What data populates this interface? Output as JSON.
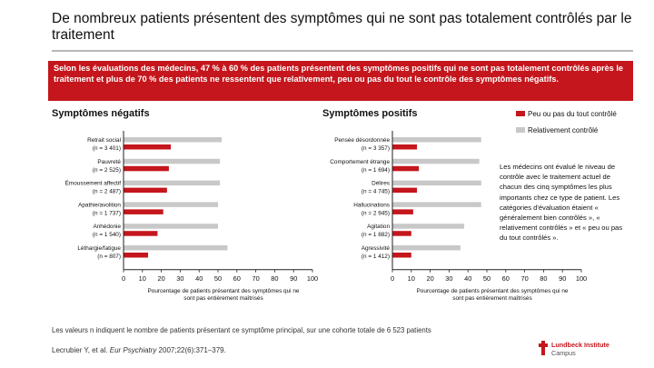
{
  "slide": {
    "title": "De nombreux patients présentent des symptômes qui ne sont pas totalement contrôlés par le traitement",
    "banner": "Selon les évaluations des médecins, 47 % à 60 % des patients présentent des symptômes positifs qui ne sont pas totalement contrôlés après le traitement et plus de 70 % des patients ne ressentent que relativement, peu ou pas du tout le contrôle des symptômes négatifs.",
    "note": "Les médecins ont évalué le niveau de contrôle avec le traitement actuel de chacun des cinq symptômes les plus importants chez ce type de patient. Les catégories d'évaluation étaient « généralement bien contrôlés », « relativement contrôlés » et « peu ou pas du tout contrôlés ».",
    "footnote": "Les valeurs n indiquent le nombre de patients présentant ce symptôme principal, sur une cohorte totale de 6 523 patients",
    "reference_prefix": "Lecrubier Y, et al. ",
    "reference_journal": "Eur Psychiatry",
    "reference_suffix": " 2007;22(6):371–379.",
    "logo_line1": "Lundbeck Institute",
    "logo_line2": "Campus"
  },
  "colors": {
    "accent": "#c4161c",
    "bar_light": "#c8c8c8",
    "bar_red": "#c4161c"
  },
  "legend": [
    {
      "label": "Peu ou pas du tout contrôlé",
      "color": "#c4161c"
    },
    {
      "label": "Relativement contrôlé",
      "color": "#c8c8c8"
    }
  ],
  "chart_data": [
    {
      "type": "bar",
      "orientation": "horizontal",
      "title": "Symptômes négatifs",
      "xlabel": "Pourcentage de patients présentant des symptômes qui ne sont pas entièrement maîtrisés",
      "xlim": [
        0,
        100
      ],
      "xticks": [
        0,
        10,
        20,
        30,
        40,
        50,
        60,
        70,
        80,
        90,
        100
      ],
      "categories": [
        {
          "name": "Retrait social",
          "n": "(n = 3 401)"
        },
        {
          "name": "Pauvreté",
          "n": "(n = 2 525)"
        },
        {
          "name": "Émoussement affectif",
          "n": "(n = 2 487)"
        },
        {
          "name": "Apathie/avolition",
          "n": "(n = 1 737)"
        },
        {
          "name": "Anhédonie",
          "n": "(n = 1 540)"
        },
        {
          "name": "Léthargie/fatigue",
          "n": "(n = 807)"
        }
      ],
      "series": [
        {
          "name": "Relativement contrôlé",
          "values": [
            52,
            51,
            51,
            50,
            50,
            55
          ]
        },
        {
          "name": "Peu ou pas du tout contrôlé",
          "values": [
            25,
            24,
            23,
            21,
            18,
            13
          ]
        }
      ]
    },
    {
      "type": "bar",
      "orientation": "horizontal",
      "title": "Symptômes positifs",
      "xlabel": "Pourcentage de patients présentant des symptômes qui ne sont pas entièrement maîtrisés",
      "xlim": [
        0,
        100
      ],
      "xticks": [
        0,
        10,
        20,
        30,
        40,
        50,
        60,
        70,
        80,
        90,
        100
      ],
      "categories": [
        {
          "name": "Pensée désordonnée",
          "n": "(n = 3 357)"
        },
        {
          "name": "Comportement étrange",
          "n": "(n = 1 694)"
        },
        {
          "name": "Délires",
          "n": "(n = 4 745)"
        },
        {
          "name": "Hallucinations",
          "n": "(n = 2 945)"
        },
        {
          "name": "Agitation",
          "n": "(n = 1 882)"
        },
        {
          "name": "Agressivité",
          "n": "(n = 1 412)"
        }
      ],
      "series": [
        {
          "name": "Relativement contrôlé",
          "values": [
            47,
            46,
            47,
            47,
            38,
            36
          ]
        },
        {
          "name": "Peu ou pas du tout contrôlé",
          "values": [
            13,
            14,
            13,
            11,
            10,
            10
          ]
        }
      ]
    }
  ]
}
